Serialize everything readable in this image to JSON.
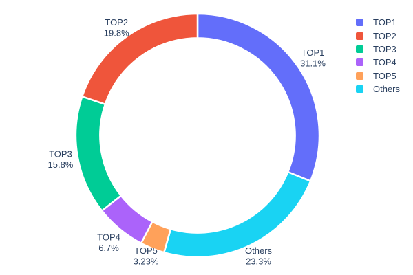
{
  "background_color": "#ffffff",
  "text_color": "#2a3f5f",
  "chart_data": {
    "type": "pie",
    "title": "",
    "hole": 0.8,
    "legend_position": "right",
    "slices": [
      {
        "name": "TOP1",
        "value": 31.1,
        "percent_label": "31.1%",
        "color": "#636EFA"
      },
      {
        "name": "TOP2",
        "value": 19.8,
        "percent_label": "19.8%",
        "color": "#EF553B"
      },
      {
        "name": "TOP3",
        "value": 15.8,
        "percent_label": "15.8%",
        "color": "#00CC96"
      },
      {
        "name": "TOP4",
        "value": 6.7,
        "percent_label": "6.7%",
        "color": "#AB63FA"
      },
      {
        "name": "TOP5",
        "value": 3.23,
        "percent_label": "3.23%",
        "color": "#FFA15A"
      },
      {
        "name": "Others",
        "value": 23.3,
        "percent_label": "23.3%",
        "color": "#19D3F3"
      }
    ],
    "slice_order_clockwise_from_top": [
      "TOP1",
      "Others",
      "TOP5",
      "TOP4",
      "TOP3",
      "TOP2"
    ],
    "legend_items": [
      "TOP1",
      "TOP2",
      "TOP3",
      "TOP4",
      "TOP5",
      "Others"
    ]
  }
}
